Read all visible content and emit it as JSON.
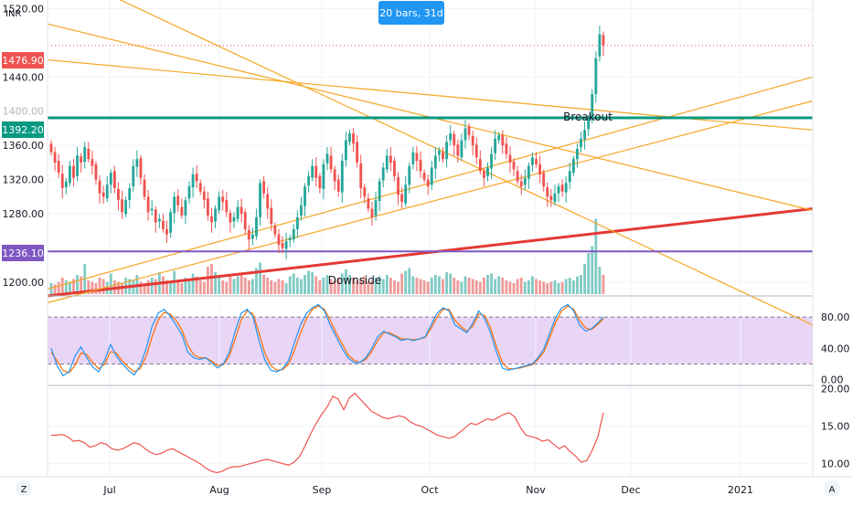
{
  "toolbar": {
    "currency": "INR",
    "measure_label": "20 bars, 31d",
    "scale_left": "Z",
    "scale_right": "A"
  },
  "colors": {
    "up": "#26a69a",
    "down": "#ef5350",
    "vol_up": "#80cbc4",
    "vol_down": "#ef9a9a",
    "support": "#7e57c2",
    "resistance": "#089981",
    "trend_red": "#e53935",
    "trend_orange": "#f5a623",
    "stoch_k": "#2196f3",
    "stoch_d": "#ff6d00",
    "stoch_band": "#e1bee7",
    "rsi_line": "#ef5350",
    "price_badge": "#ef5350",
    "measure_badge": "#2196f3"
  },
  "chart_data": [
    {
      "type": "candlestick",
      "x_ticks": [
        "Jul",
        "Aug",
        "Sep",
        "Oct",
        "Nov",
        "Dec",
        "2021"
      ],
      "y_ticks": [
        "1520.00",
        "1440.00",
        "1360.00",
        "1320.00",
        "1280.00",
        "1200.00"
      ],
      "ylim": [
        1184,
        1530
      ],
      "price_badges": [
        "1476.90",
        "1392.20",
        "1236.10"
      ],
      "horizontal_levels": [
        {
          "value": 1392.2,
          "color": "resistance",
          "label": "Breakout"
        },
        {
          "value": 1236.1,
          "color": "support",
          "label": "Downside"
        }
      ],
      "last_price_line": 1476.9,
      "candles_close": [
        1352,
        1340,
        1328,
        1310,
        1318,
        1336,
        1322,
        1348,
        1340,
        1358,
        1344,
        1336,
        1320,
        1304,
        1300,
        1314,
        1328,
        1310,
        1296,
        1282,
        1296,
        1310,
        1336,
        1344,
        1322,
        1300,
        1282,
        1286,
        1270,
        1274,
        1262,
        1256,
        1282,
        1300,
        1290,
        1278,
        1296,
        1312,
        1326,
        1318,
        1306,
        1296,
        1278,
        1270,
        1286,
        1300,
        1294,
        1282,
        1270,
        1276,
        1288,
        1280,
        1262,
        1250,
        1256,
        1276,
        1316,
        1304,
        1286,
        1268,
        1256,
        1244,
        1240,
        1248,
        1252,
        1262,
        1276,
        1290,
        1312,
        1324,
        1336,
        1322,
        1310,
        1338,
        1350,
        1332,
        1318,
        1306,
        1342,
        1366,
        1374,
        1362,
        1340,
        1310,
        1300,
        1286,
        1276,
        1296,
        1318,
        1334,
        1348,
        1340,
        1324,
        1302,
        1294,
        1314,
        1336,
        1352,
        1342,
        1330,
        1320,
        1312,
        1334,
        1348,
        1354,
        1344,
        1364,
        1374,
        1360,
        1348,
        1366,
        1380,
        1372,
        1360,
        1346,
        1330,
        1322,
        1334,
        1350,
        1368,
        1372,
        1360,
        1350,
        1340,
        1332,
        1318,
        1312,
        1322,
        1336,
        1346,
        1338,
        1326,
        1312,
        1300,
        1296,
        1304,
        1312,
        1306,
        1316,
        1330,
        1344,
        1356,
        1368,
        1378,
        1392,
        1420,
        1462,
        1490,
        1476.9
      ]
    },
    {
      "type": "bar",
      "name": "volume",
      "values": [
        8,
        7,
        9,
        12,
        10,
        9,
        11,
        14,
        13,
        22,
        10,
        9,
        8,
        12,
        11,
        9,
        15,
        10,
        9,
        8,
        12,
        11,
        10,
        14,
        9,
        8,
        10,
        12,
        11,
        16,
        13,
        10,
        9,
        17,
        10,
        8,
        12,
        11,
        15,
        13,
        10,
        9,
        20,
        22,
        16,
        12,
        10,
        9,
        14,
        11,
        13,
        15,
        12,
        10,
        11,
        19,
        23,
        14,
        12,
        10,
        9,
        11,
        10,
        8,
        13,
        15,
        12,
        11,
        14,
        17,
        16,
        13,
        10,
        12,
        14,
        11,
        10,
        12,
        15,
        18,
        14,
        12,
        10,
        11,
        13,
        9,
        10,
        12,
        13,
        11,
        14,
        12,
        10,
        9,
        15,
        17,
        19,
        13,
        12,
        11,
        10,
        9,
        12,
        14,
        13,
        11,
        16,
        15,
        12,
        10,
        9,
        13,
        12,
        11,
        10,
        9,
        12,
        14,
        15,
        11,
        13,
        12,
        10,
        9,
        8,
        11,
        12,
        9,
        10,
        13,
        11,
        10,
        9,
        8,
        9,
        10,
        8,
        9,
        11,
        12,
        10,
        13,
        14,
        22,
        30,
        35,
        55,
        20,
        14
      ],
      "ylim": [
        0,
        60
      ]
    },
    {
      "type": "line",
      "name": "stochastic",
      "y_ticks": [
        "80.00",
        "40.00",
        "0.00"
      ],
      "ylim": [
        -5,
        100
      ],
      "band": [
        20,
        80
      ],
      "k": [
        40,
        18,
        5,
        10,
        30,
        42,
        28,
        16,
        10,
        25,
        45,
        30,
        20,
        12,
        6,
        18,
        40,
        68,
        85,
        90,
        82,
        70,
        58,
        35,
        28,
        26,
        28,
        22,
        15,
        20,
        35,
        62,
        85,
        90,
        80,
        50,
        25,
        12,
        10,
        14,
        25,
        48,
        70,
        85,
        92,
        96,
        88,
        70,
        55,
        40,
        28,
        22,
        22,
        28,
        40,
        55,
        62,
        58,
        55,
        50,
        52,
        50,
        52,
        55,
        70,
        85,
        92,
        88,
        70,
        65,
        60,
        72,
        88,
        78,
        60,
        35,
        15,
        12,
        14,
        16,
        18,
        20,
        28,
        40,
        60,
        80,
        92,
        96,
        88,
        70,
        62,
        65,
        72,
        80
      ],
      "d": [
        35,
        24,
        12,
        9,
        18,
        34,
        32,
        22,
        14,
        20,
        36,
        34,
        24,
        16,
        10,
        14,
        30,
        55,
        76,
        86,
        84,
        76,
        64,
        44,
        32,
        28,
        28,
        24,
        18,
        19,
        30,
        52,
        76,
        88,
        84,
        60,
        34,
        18,
        12,
        13,
        20,
        38,
        60,
        78,
        90,
        94,
        90,
        76,
        60,
        46,
        32,
        25,
        22,
        26,
        36,
        50,
        60,
        60,
        56,
        52,
        52,
        51,
        52,
        54,
        66,
        80,
        90,
        90,
        76,
        68,
        62,
        68,
        84,
        82,
        66,
        42,
        22,
        14,
        14,
        15,
        17,
        19,
        26,
        36,
        54,
        74,
        88,
        94,
        90,
        76,
        66,
        64,
        70,
        78
      ]
    },
    {
      "type": "line",
      "name": "indicator",
      "y_ticks": [
        "20.00",
        "15.00",
        "10.00"
      ],
      "ylim": [
        8.5,
        20.2
      ],
      "values": [
        13.8,
        13.8,
        13.9,
        13.6,
        13.0,
        13.1,
        12.8,
        12.2,
        12.4,
        12.8,
        12.6,
        12.0,
        11.8,
        12.0,
        12.4,
        12.8,
        12.6,
        12.0,
        11.5,
        11.2,
        11.4,
        11.8,
        12.0,
        11.6,
        11.2,
        10.8,
        10.4,
        10.0,
        9.4,
        9.0,
        8.8,
        9.0,
        9.4,
        9.6,
        9.6,
        9.8,
        10.0,
        10.2,
        10.4,
        10.6,
        10.4,
        10.2,
        10.0,
        9.8,
        10.2,
        11.0,
        12.4,
        14.0,
        15.4,
        16.6,
        17.6,
        19.0,
        18.6,
        17.2,
        18.8,
        19.4,
        18.6,
        17.8,
        17.0,
        16.6,
        16.2,
        16.0,
        16.2,
        16.4,
        16.2,
        15.6,
        15.2,
        15.0,
        14.6,
        14.2,
        13.8,
        13.6,
        13.4,
        13.6,
        14.2,
        14.8,
        15.4,
        15.2,
        15.6,
        16.0,
        15.8,
        16.2,
        16.6,
        16.8,
        16.2,
        14.8,
        13.8,
        13.6,
        13.4,
        13.0,
        13.2,
        12.6,
        12.0,
        12.4,
        11.6,
        11.0,
        10.2,
        10.4,
        11.8,
        13.6,
        16.8
      ]
    },
    {
      "type": "line",
      "name": "trendlines",
      "lines": [
        {
          "color": "trend_red",
          "from": [
            0,
            1184
          ],
          "to": [
            1,
            1286
          ]
        },
        {
          "color": "trend_orange",
          "from": [
            0,
            1502
          ],
          "to": [
            1,
            1284
          ]
        },
        {
          "color": "trend_orange",
          "from": [
            0,
            1460
          ],
          "to": [
            1,
            1378
          ]
        },
        {
          "color": "trend_orange",
          "from": [
            0,
            1176
          ],
          "to": [
            1,
            1412
          ]
        },
        {
          "color": "trend_orange",
          "from": [
            0,
            1192
          ],
          "to": [
            1,
            1440
          ]
        },
        {
          "color": "trend_orange",
          "from": [
            0,
            1570
          ],
          "to": [
            1,
            1150
          ]
        }
      ]
    }
  ]
}
